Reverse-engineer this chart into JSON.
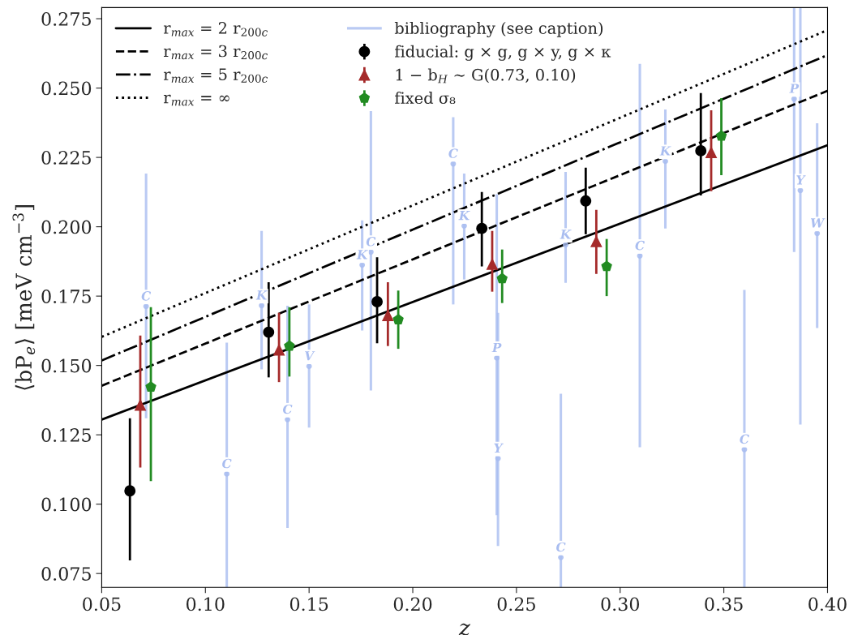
{
  "chart_data": {
    "type": "scatter",
    "xlabel": "z",
    "ylabel": "⟨bP$_{e}$⟩ [meV cm$^{−3}$]",
    "xlim": [
      0.05,
      0.4
    ],
    "ylim": [
      0.07,
      0.279
    ],
    "xticks": [
      0.05,
      {
        "value": 0.1,
        "label": "0.10"
      },
      0.15,
      {
        "value": 0.2,
        "label": "0.20"
      },
      0.25,
      {
        "value": 0.3,
        "label": "0.30"
      },
      0.35,
      {
        "value": 0.4,
        "label": "0.40"
      }
    ],
    "yticks": [
      0.075,
      {
        "value": 0.1,
        "label": "0.100"
      },
      0.125,
      {
        "value": 0.15,
        "label": "0.150"
      },
      0.175,
      {
        "value": 0.2,
        "label": "0.200"
      },
      0.225,
      {
        "value": 0.25,
        "label": "0.250"
      },
      0.275
    ],
    "grid": false,
    "legend": "top left",
    "series": [
      {
        "type": "line",
        "name": "r$_{max}$ = 2 r$_{200c}$",
        "color": "#000000",
        "line_style": "solid",
        "x": [
          0.05,
          0.4
        ],
        "values": [
          0.1305,
          0.2294
        ]
      },
      {
        "type": "line",
        "name": "r$_{max}$ = 3 r$_{200c}$",
        "color": "#000000",
        "line_style": "dashed",
        "x": [
          0.05,
          0.4
        ],
        "values": [
          0.1427,
          0.249
        ]
      },
      {
        "type": "line",
        "name": "r$_{max}$ = 5 r$_{200c}$",
        "color": "#000000",
        "line_style": "dashdot",
        "x": [
          0.05,
          0.4
        ],
        "values": [
          0.1518,
          0.2619
        ]
      },
      {
        "type": "line",
        "name": "r$_{max}$ = ∞",
        "color": "#000000",
        "line_style": "dotted",
        "x": [
          0.05,
          0.4
        ],
        "values": [
          0.1603,
          0.2709
        ]
      },
      {
        "name": "bibliography (see caption)",
        "color": "#a9bdf0",
        "marker": "circle",
        "x": [
          0.0714,
          0.1103,
          0.1271,
          0.1396,
          0.15,
          0.1756,
          0.1798,
          0.2195,
          0.2248,
          0.2405,
          0.2411,
          0.2737,
          0.2714,
          0.3095,
          0.3218,
          0.3599,
          0.3839,
          0.3869,
          0.395
        ],
        "values": [
          0.1713,
          0.1109,
          0.1716,
          0.1305,
          0.1497,
          0.1862,
          0.1909,
          0.2227,
          0.2003,
          0.1527,
          0.1165,
          0.1935,
          0.0808,
          0.1895,
          0.2236,
          0.1197,
          0.2461,
          0.2131,
          0.1976
        ],
        "errors": [
          [
            0.131,
            0.2192
          ],
          [
            0.07,
            0.1582
          ],
          [
            0.1486,
            0.1985
          ],
          [
            0.0914,
            0.1715
          ],
          [
            0.1276,
            0.172
          ],
          [
            0.1626,
            0.2023
          ],
          [
            0.141,
            0.2417
          ],
          [
            0.172,
            0.2395
          ],
          [
            0.181,
            0.2192
          ],
          [
            0.096,
            0.2117
          ],
          [
            0.0849,
            0.169
          ],
          [
            0.1798,
            0.2198
          ],
          [
            0.07,
            0.1398
          ],
          [
            0.1205,
            0.2587
          ],
          [
            0.1994,
            0.2423
          ],
          [
            0.07,
            0.1772
          ],
          [
            0.1909,
            0.279
          ],
          [
            0.1287,
            0.279
          ],
          [
            0.1635,
            0.2373
          ]
        ]
      },
      {
        "name": "fiducial: g × g, g × y, g × κ",
        "color": "#000000",
        "marker": "circle",
        "x": [
          0.0636,
          0.1305,
          0.1828,
          0.2333,
          0.2834,
          0.3389
        ],
        "values": [
          0.1048,
          0.162,
          0.173,
          0.1994,
          0.2093,
          0.2274
        ],
        "errors": [
          [
            0.0797,
            0.131
          ],
          [
            0.1457,
            0.18
          ],
          [
            0.158,
            0.189
          ],
          [
            0.1857,
            0.2125
          ],
          [
            0.1973,
            0.2213
          ],
          [
            0.2113,
            0.2482
          ]
        ]
      },
      {
        "name": "1 − b$_{H}$ ∼ G(0.73, 0.10)",
        "color": "#a52a2a",
        "marker": "triangle",
        "x": [
          0.0686,
          0.1355,
          0.188,
          0.2383,
          0.2885,
          0.3439
        ],
        "values": [
          0.1357,
          0.1556,
          0.168,
          0.1865,
          0.1947,
          0.2268
        ],
        "errors": [
          [
            0.1132,
            0.1608
          ],
          [
            0.144,
            0.169
          ],
          [
            0.157,
            0.18
          ],
          [
            0.1766,
            0.1985
          ],
          [
            0.183,
            0.2061
          ],
          [
            0.2128,
            0.242
          ]
        ]
      },
      {
        "name": "fixed σ₈",
        "color": "#228b22",
        "x": [
          0.0737,
          0.1405,
          0.193,
          0.2431,
          0.2935,
          0.3488
        ],
        "values": [
          0.1422,
          0.157,
          0.1665,
          0.1813,
          0.1857,
          0.2327
        ],
        "errors": [
          [
            0.1083,
            0.171
          ],
          [
            0.146,
            0.171
          ],
          [
            0.156,
            0.177
          ],
          [
            0.1725,
            0.1918
          ],
          [
            0.175,
            0.1956
          ],
          [
            0.2186,
            0.2464
          ]
        ]
      }
    ],
    "annotations": [
      {
        "text": "C",
        "x": 0.0714,
        "y": 0.1713
      },
      {
        "text": "C",
        "x": 0.1103,
        "y": 0.1109
      },
      {
        "text": "K",
        "x": 0.1271,
        "y": 0.1716
      },
      {
        "text": "C",
        "x": 0.1396,
        "y": 0.1305
      },
      {
        "text": "V",
        "x": 0.15,
        "y": 0.1497
      },
      {
        "text": "K",
        "x": 0.1756,
        "y": 0.1862
      },
      {
        "text": "C",
        "x": 0.1798,
        "y": 0.1909
      },
      {
        "text": "C",
        "x": 0.2195,
        "y": 0.2227
      },
      {
        "text": "K",
        "x": 0.2248,
        "y": 0.2003
      },
      {
        "text": "P",
        "x": 0.2405,
        "y": 0.1527
      },
      {
        "text": "Y",
        "x": 0.2411,
        "y": 0.1165
      },
      {
        "text": "K",
        "x": 0.2737,
        "y": 0.1935
      },
      {
        "text": "C",
        "x": 0.2714,
        "y": 0.0808
      },
      {
        "text": "C",
        "x": 0.3095,
        "y": 0.1895
      },
      {
        "text": "K",
        "x": 0.3218,
        "y": 0.2236
      },
      {
        "text": "C",
        "x": 0.3599,
        "y": 0.1197
      },
      {
        "text": "P",
        "x": 0.3839,
        "y": 0.2461
      },
      {
        "text": "Y",
        "x": 0.3869,
        "y": 0.2131
      },
      {
        "text": "W",
        "x": 0.395,
        "y": 0.1976
      }
    ]
  }
}
